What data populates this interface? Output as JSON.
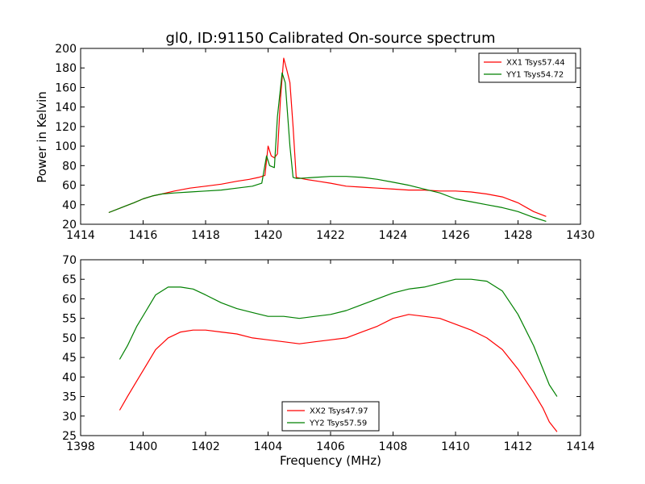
{
  "figure": {
    "title": "gl0, ID:91150 Calibrated On-source spectrum",
    "ylabel": "Power in Kelvin",
    "xlabel": "Frequency (MHz)"
  },
  "colors": {
    "red": "#ff0000",
    "green": "#008000"
  },
  "chart_data": [
    {
      "type": "line",
      "title": "gl0, ID:91150 Calibrated On-source spectrum",
      "xlabel": "",
      "ylabel": "Power in Kelvin",
      "xlim": [
        1414,
        1430
      ],
      "ylim": [
        20,
        200
      ],
      "xticks": [
        1414,
        1416,
        1418,
        1420,
        1422,
        1424,
        1426,
        1428,
        1430
      ],
      "yticks": [
        20,
        40,
        60,
        80,
        100,
        120,
        140,
        160,
        180,
        200
      ],
      "grid": false,
      "legend_position": "top-right",
      "series": [
        {
          "name": "XX1 Tsys57.44",
          "color": "#ff0000",
          "x": [
            1414.9,
            1415.3,
            1415.7,
            1416.0,
            1416.3,
            1416.6,
            1417.0,
            1417.5,
            1418.0,
            1418.5,
            1419.0,
            1419.4,
            1419.7,
            1419.9,
            1420.0,
            1420.1,
            1420.2,
            1420.3,
            1420.4,
            1420.5,
            1420.6,
            1420.7,
            1420.8,
            1420.9,
            1421.2,
            1421.6,
            1422.0,
            1422.5,
            1423.0,
            1423.5,
            1424.0,
            1424.5,
            1425.0,
            1425.5,
            1426.0,
            1426.5,
            1427.0,
            1427.5,
            1428.0,
            1428.5,
            1428.9
          ],
          "y": [
            32,
            37,
            42,
            46,
            49,
            51,
            54,
            57,
            59,
            61,
            64,
            66,
            68,
            70,
            100,
            90,
            88,
            92,
            150,
            190,
            178,
            165,
            120,
            68,
            66,
            64,
            62,
            59,
            58,
            57,
            56,
            55,
            55,
            54,
            54,
            53,
            51,
            48,
            42,
            33,
            28
          ]
        },
        {
          "name": "YY1 Tsys54.72",
          "color": "#008000",
          "x": [
            1414.9,
            1415.3,
            1415.7,
            1416.0,
            1416.3,
            1416.6,
            1417.0,
            1417.5,
            1418.0,
            1418.5,
            1419.0,
            1419.5,
            1419.8,
            1419.95,
            1420.05,
            1420.2,
            1420.3,
            1420.45,
            1420.55,
            1420.7,
            1420.8,
            1420.9,
            1421.0,
            1421.5,
            1422.0,
            1422.5,
            1423.0,
            1423.5,
            1424.0,
            1424.5,
            1425.0,
            1425.5,
            1426.0,
            1426.5,
            1427.0,
            1427.5,
            1428.0,
            1428.5,
            1428.9
          ],
          "y": [
            32,
            37,
            42,
            46,
            49,
            51,
            52,
            53,
            54,
            55,
            57,
            59,
            62,
            90,
            80,
            78,
            130,
            175,
            165,
            100,
            68,
            67,
            67,
            68,
            69,
            69,
            68,
            66,
            63,
            60,
            56,
            52,
            46,
            43,
            40,
            37,
            33,
            27,
            23
          ]
        }
      ]
    },
    {
      "type": "line",
      "title": "",
      "xlabel": "Frequency (MHz)",
      "ylabel": "",
      "xlim": [
        1398,
        1414
      ],
      "ylim": [
        25,
        70
      ],
      "xticks": [
        1398,
        1400,
        1402,
        1404,
        1406,
        1408,
        1410,
        1412,
        1414
      ],
      "yticks": [
        25,
        30,
        35,
        40,
        45,
        50,
        55,
        60,
        65,
        70
      ],
      "grid": false,
      "legend_position": "bottom-center",
      "series": [
        {
          "name": "XX2 Tsys47.97",
          "color": "#ff0000",
          "x": [
            1399.25,
            1399.5,
            1399.8,
            1400.1,
            1400.4,
            1400.8,
            1401.2,
            1401.6,
            1402.0,
            1402.5,
            1403.0,
            1403.5,
            1404.0,
            1404.5,
            1405.0,
            1405.5,
            1406.0,
            1406.5,
            1407.0,
            1407.5,
            1408.0,
            1408.5,
            1409.0,
            1409.5,
            1410.0,
            1410.5,
            1411.0,
            1411.5,
            1412.0,
            1412.5,
            1412.8,
            1413.0,
            1413.25
          ],
          "y": [
            31.5,
            35,
            39,
            43,
            47,
            50,
            51.5,
            52,
            52,
            51.5,
            51,
            50,
            49.5,
            49,
            48.5,
            49,
            49.5,
            50,
            51.5,
            53,
            55,
            56,
            55.5,
            55,
            53.5,
            52,
            50,
            47,
            42,
            36,
            32,
            28.5,
            26
          ]
        },
        {
          "name": "YY2 Tsys57.59",
          "color": "#008000",
          "x": [
            1399.25,
            1399.5,
            1399.8,
            1400.1,
            1400.4,
            1400.8,
            1401.2,
            1401.6,
            1402.0,
            1402.5,
            1403.0,
            1403.5,
            1404.0,
            1404.5,
            1405.0,
            1405.5,
            1406.0,
            1406.5,
            1407.0,
            1407.5,
            1408.0,
            1408.5,
            1409.0,
            1409.5,
            1410.0,
            1410.5,
            1411.0,
            1411.5,
            1412.0,
            1412.5,
            1412.8,
            1413.0,
            1413.25
          ],
          "y": [
            44.5,
            48,
            53,
            57,
            61,
            63,
            63,
            62.5,
            61,
            59,
            57.5,
            56.5,
            55.5,
            55.5,
            55,
            55.5,
            56,
            57,
            58.5,
            60,
            61.5,
            62.5,
            63,
            64,
            65,
            65,
            64.5,
            62,
            56,
            48,
            42,
            38,
            35
          ]
        }
      ]
    }
  ]
}
